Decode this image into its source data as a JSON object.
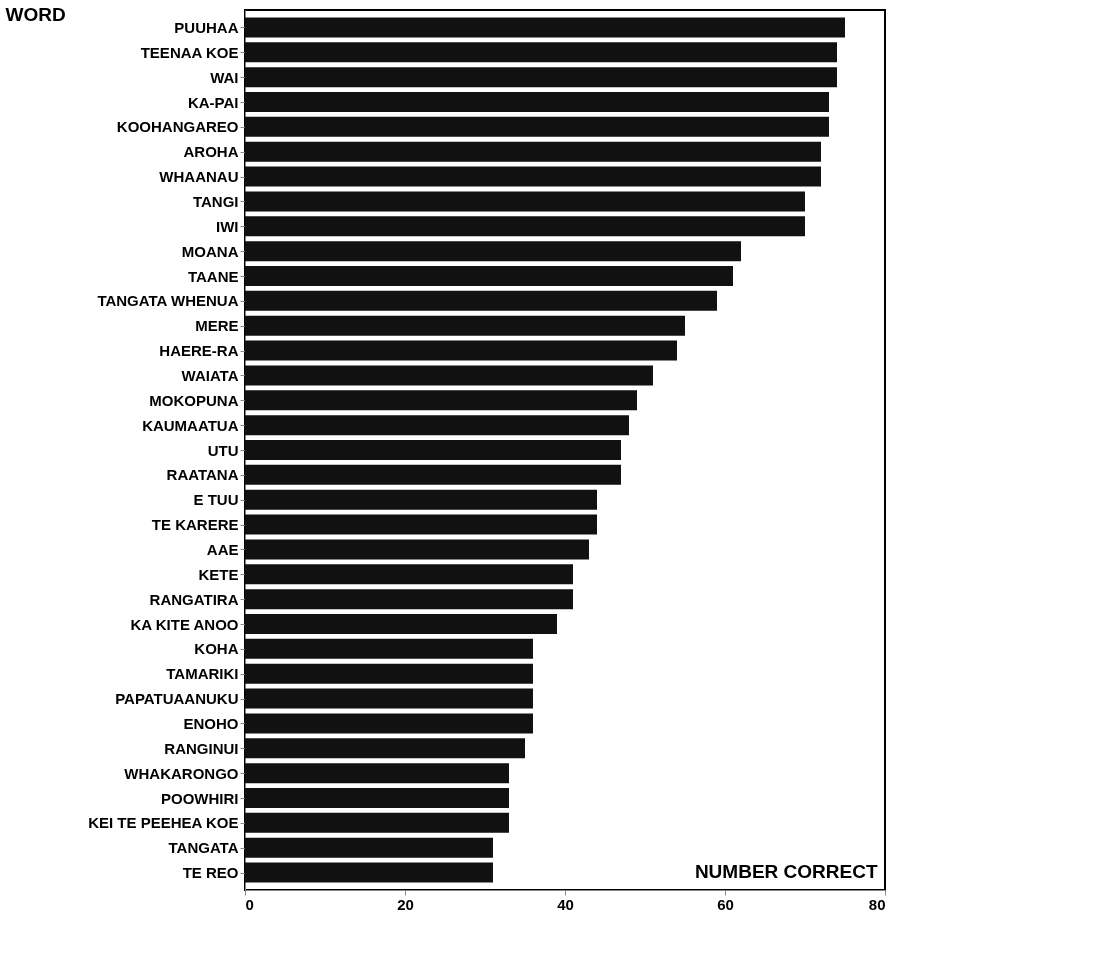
{
  "chart_data": {
    "type": "bar",
    "orientation": "horizontal",
    "xlabel": "NUMBER CORRECT",
    "ylabel": "WORD",
    "categories": [
      "PUUHAA",
      "TEENAA KOE",
      "WAI",
      "KA-PAI",
      "KOOHANGAREO",
      "AROHA",
      "WHAANAU",
      "TANGI",
      "IWI",
      "MOANA",
      "TAANE",
      "TANGATA WHENUA",
      "MERE",
      "HAERE-RA",
      "WAIATA",
      "MOKOPUNA",
      "KAUMAATUA",
      "UTU",
      "RAATANA",
      "E TUU",
      "TE KARERE",
      "AAE",
      "KETE",
      "RANGATIRA",
      "KA KITE ANOO",
      "KOHA",
      "TAMARIKI",
      "PAPATUAANUKU",
      "ENOHO",
      "RANGINUI",
      "WHAKARONGO",
      "POOWHIRI",
      "KEI TE PEEHEA KOE",
      "TANGATA",
      "TE REO"
    ],
    "values": [
      75,
      74,
      74,
      73,
      73,
      72,
      72,
      70,
      70,
      62,
      61,
      59,
      55,
      54,
      51,
      49,
      48,
      47,
      47,
      44,
      44,
      43,
      41,
      41,
      39,
      36,
      36,
      36,
      36,
      35,
      33,
      33,
      33,
      31,
      31
    ],
    "color": "#111111",
    "xlim": [
      0,
      80
    ],
    "xticks": [
      0,
      20,
      40,
      60,
      80
    ],
    "grid": false
  }
}
